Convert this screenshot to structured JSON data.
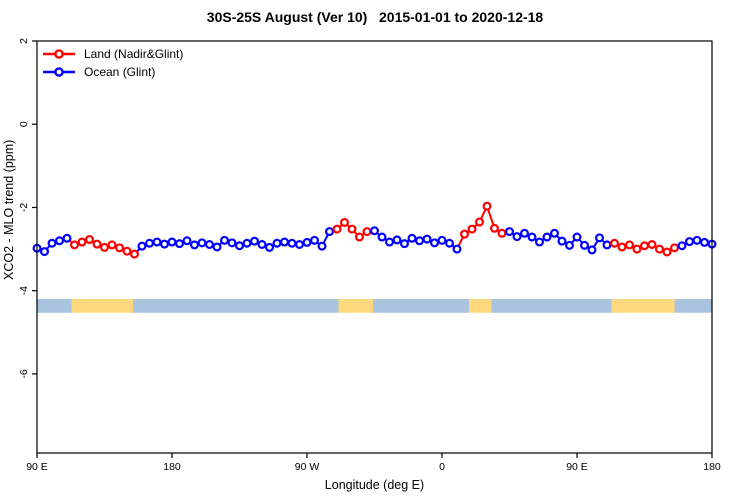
{
  "title": "30S-25S August (Ver 10)   2015-01-01 to 2020-12-18",
  "chart_data": {
    "type": "line",
    "title": "30S-25S August (Ver 10)   2015-01-01 to 2020-12-18",
    "xlabel": "Longitude (deg E)",
    "ylabel": "XCO2 - MLO trend (ppm)",
    "xlim": [
      90,
      540
    ],
    "ylim": [
      -7.9,
      2.0
    ],
    "grid": false,
    "legend_position": "top-left",
    "legend": [
      {
        "label": "Land (Nadir&Glint)",
        "color": "#ff0000",
        "series": "land"
      },
      {
        "label": "Ocean (Glint)",
        "color": "#0000ff",
        "series": "ocean"
      }
    ],
    "x_ticks": [
      {
        "pos": 90,
        "label": "90 E"
      },
      {
        "pos": 180,
        "label": "180"
      },
      {
        "pos": 270,
        "label": "90 W"
      },
      {
        "pos": 360,
        "label": "0"
      },
      {
        "pos": 450,
        "label": "90 E"
      },
      {
        "pos": 540,
        "label": "180"
      }
    ],
    "y_ticks": [
      {
        "pos": 2,
        "label": "2"
      },
      {
        "pos": 0,
        "label": "0"
      },
      {
        "pos": -2,
        "label": "-2"
      },
      {
        "pos": -4,
        "label": "-4"
      },
      {
        "pos": -6,
        "label": "-6"
      }
    ],
    "marker": "open-circle",
    "points": [
      [
        90,
        -2.98,
        "ocean"
      ],
      [
        95,
        -3.06,
        "ocean"
      ],
      [
        100,
        -2.86,
        "ocean"
      ],
      [
        105,
        -2.8,
        "ocean"
      ],
      [
        110,
        -2.74,
        "ocean"
      ],
      [
        115,
        -2.9,
        "land"
      ],
      [
        120,
        -2.83,
        "land"
      ],
      [
        125,
        -2.77,
        "land"
      ],
      [
        130,
        -2.88,
        "land"
      ],
      [
        135,
        -2.96,
        "land"
      ],
      [
        140,
        -2.9,
        "land"
      ],
      [
        145,
        -2.97,
        "land"
      ],
      [
        150,
        -3.05,
        "land"
      ],
      [
        155,
        -3.12,
        "land"
      ],
      [
        160,
        -2.93,
        "ocean"
      ],
      [
        165,
        -2.86,
        "ocean"
      ],
      [
        170,
        -2.83,
        "ocean"
      ],
      [
        175,
        -2.88,
        "ocean"
      ],
      [
        180,
        -2.83,
        "ocean"
      ],
      [
        185,
        -2.87,
        "ocean"
      ],
      [
        190,
        -2.8,
        "ocean"
      ],
      [
        195,
        -2.9,
        "ocean"
      ],
      [
        200,
        -2.85,
        "ocean"
      ],
      [
        205,
        -2.89,
        "ocean"
      ],
      [
        210,
        -2.95,
        "ocean"
      ],
      [
        215,
        -2.79,
        "ocean"
      ],
      [
        220,
        -2.85,
        "ocean"
      ],
      [
        225,
        -2.92,
        "ocean"
      ],
      [
        230,
        -2.86,
        "ocean"
      ],
      [
        235,
        -2.81,
        "ocean"
      ],
      [
        240,
        -2.89,
        "ocean"
      ],
      [
        245,
        -2.96,
        "ocean"
      ],
      [
        250,
        -2.86,
        "ocean"
      ],
      [
        255,
        -2.83,
        "ocean"
      ],
      [
        260,
        -2.86,
        "ocean"
      ],
      [
        265,
        -2.89,
        "ocean"
      ],
      [
        270,
        -2.84,
        "ocean"
      ],
      [
        275,
        -2.79,
        "ocean"
      ],
      [
        280,
        -2.93,
        "ocean"
      ],
      [
        285,
        -2.58,
        "ocean"
      ],
      [
        290,
        -2.52,
        "land"
      ],
      [
        295,
        -2.36,
        "land"
      ],
      [
        300,
        -2.52,
        "land"
      ],
      [
        305,
        -2.71,
        "land"
      ],
      [
        310,
        -2.58,
        "land"
      ],
      [
        315,
        -2.56,
        "ocean"
      ],
      [
        320,
        -2.71,
        "ocean"
      ],
      [
        325,
        -2.83,
        "ocean"
      ],
      [
        330,
        -2.78,
        "ocean"
      ],
      [
        335,
        -2.87,
        "ocean"
      ],
      [
        340,
        -2.74,
        "ocean"
      ],
      [
        345,
        -2.8,
        "ocean"
      ],
      [
        350,
        -2.76,
        "ocean"
      ],
      [
        355,
        -2.85,
        "ocean"
      ],
      [
        360,
        -2.79,
        "ocean"
      ],
      [
        365,
        -2.86,
        "ocean"
      ],
      [
        370,
        -3.0,
        "ocean"
      ],
      [
        375,
        -2.64,
        "land"
      ],
      [
        380,
        -2.52,
        "land"
      ],
      [
        385,
        -2.35,
        "land"
      ],
      [
        390,
        -1.97,
        "land"
      ],
      [
        395,
        -2.5,
        "land"
      ],
      [
        400,
        -2.62,
        "land"
      ],
      [
        405,
        -2.58,
        "ocean"
      ],
      [
        410,
        -2.7,
        "ocean"
      ],
      [
        415,
        -2.62,
        "ocean"
      ],
      [
        420,
        -2.71,
        "ocean"
      ],
      [
        425,
        -2.83,
        "ocean"
      ],
      [
        430,
        -2.71,
        "ocean"
      ],
      [
        435,
        -2.62,
        "ocean"
      ],
      [
        440,
        -2.81,
        "ocean"
      ],
      [
        445,
        -2.91,
        "ocean"
      ],
      [
        450,
        -2.71,
        "ocean"
      ],
      [
        455,
        -2.91,
        "ocean"
      ],
      [
        460,
        -3.02,
        "ocean"
      ],
      [
        465,
        -2.73,
        "ocean"
      ],
      [
        470,
        -2.9,
        "ocean"
      ],
      [
        475,
        -2.86,
        "land"
      ],
      [
        480,
        -2.95,
        "land"
      ],
      [
        485,
        -2.9,
        "land"
      ],
      [
        490,
        -3.0,
        "land"
      ],
      [
        495,
        -2.92,
        "land"
      ],
      [
        500,
        -2.89,
        "land"
      ],
      [
        505,
        -3.0,
        "land"
      ],
      [
        510,
        -3.07,
        "land"
      ],
      [
        515,
        -2.97,
        "land"
      ],
      [
        520,
        -2.92,
        "ocean"
      ],
      [
        525,
        -2.82,
        "ocean"
      ],
      [
        530,
        -2.79,
        "ocean"
      ],
      [
        535,
        -2.84,
        "ocean"
      ],
      [
        540,
        -2.88,
        "ocean"
      ]
    ],
    "surface_band": {
      "value_top": -4.2,
      "value_bottom": -4.53,
      "segments": [
        {
          "from": 90,
          "to": 113,
          "type": "ocean"
        },
        {
          "from": 113,
          "to": 154,
          "type": "land"
        },
        {
          "from": 154,
          "to": 291,
          "type": "ocean"
        },
        {
          "from": 291,
          "to": 314,
          "type": "land"
        },
        {
          "from": 314,
          "to": 378,
          "type": "ocean"
        },
        {
          "from": 378,
          "to": 393,
          "type": "land"
        },
        {
          "from": 393,
          "to": 473,
          "type": "ocean"
        },
        {
          "from": 473,
          "to": 515,
          "type": "land"
        },
        {
          "from": 515,
          "to": 540,
          "type": "ocean"
        }
      ]
    },
    "colors": {
      "land": "#ff0000",
      "ocean": "#0000ff",
      "band_land": "#ffd97e",
      "band_ocean": "#aac3de",
      "frame": "#000000"
    }
  }
}
